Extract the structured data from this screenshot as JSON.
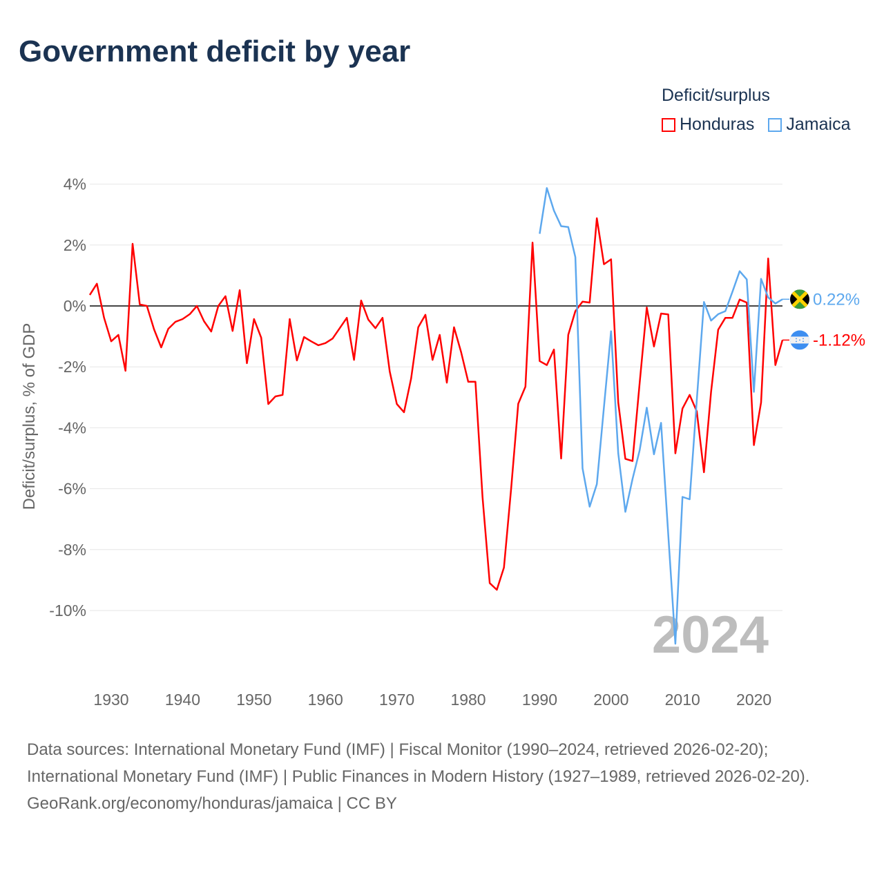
{
  "title": "Government deficit by year",
  "legend": {
    "title": "Deficit/surplus",
    "items": [
      {
        "label": "Honduras",
        "color": "#ff0000"
      },
      {
        "label": "Jamaica",
        "color": "#5da8ee"
      }
    ]
  },
  "chart_data": {
    "type": "line",
    "title": "Government deficit by year",
    "xlabel": "",
    "ylabel": "Deficit/surplus, % of GDP",
    "xlim": [
      1927,
      2024
    ],
    "ylim": [
      -11,
      4
    ],
    "yticks": [
      4,
      2,
      0,
      -2,
      -4,
      -6,
      -8,
      -10
    ],
    "ytick_labels": [
      "4%",
      "2%",
      "0%",
      "-2%",
      "-4%",
      "-6%",
      "-8%",
      "-10%"
    ],
    "xticks": [
      1930,
      1940,
      1950,
      1960,
      1970,
      1980,
      1990,
      2000,
      2010,
      2020
    ],
    "xtick_labels": [
      "1930",
      "1940",
      "1950",
      "1960",
      "1970",
      "1980",
      "1990",
      "2000",
      "2010",
      "2020"
    ],
    "grid": true,
    "year_label": "2024",
    "series": [
      {
        "name": "Honduras",
        "color": "#ff0000",
        "end_label": "-1.12%",
        "flag": "honduras-flag",
        "start_year": 1927,
        "values": [
          0.36,
          0.73,
          -0.39,
          -1.16,
          -0.95,
          -2.13,
          2.04,
          0.05,
          0.0,
          -0.77,
          -1.36,
          -0.75,
          -0.52,
          -0.43,
          -0.27,
          0.0,
          -0.5,
          -0.84,
          0.0,
          0.32,
          -0.82,
          0.52,
          -1.88,
          -0.43,
          -1.04,
          -3.22,
          -2.97,
          -2.92,
          -0.43,
          -1.79,
          -1.02,
          -1.16,
          -1.29,
          -1.22,
          -1.07,
          -0.73,
          -0.39,
          -1.77,
          0.18,
          -0.45,
          -0.73,
          -0.39,
          -2.15,
          -3.22,
          -3.49,
          -2.38,
          -0.7,
          -0.29,
          -1.77,
          -0.95,
          -2.52,
          -0.7,
          -1.52,
          -2.49,
          -2.49,
          -6.28,
          -9.1,
          -9.32,
          -8.59,
          -6.0,
          -3.21,
          -2.65,
          2.08,
          -1.81,
          -1.94,
          -1.43,
          -5.01,
          -0.95,
          -0.17,
          0.14,
          0.11,
          2.88,
          1.37,
          1.53,
          -3.17,
          -5.02,
          -5.09,
          -2.53,
          -0.05,
          -1.33,
          -0.25,
          -0.28,
          -4.84,
          -3.37,
          -2.92,
          -3.46,
          -5.46,
          -2.82,
          -0.78,
          -0.39,
          -0.39,
          0.21,
          0.11,
          -4.57,
          -3.17,
          1.56,
          -1.94,
          -1.12
        ]
      },
      {
        "name": "Jamaica",
        "color": "#5da8ee",
        "end_label": "0.22%",
        "flag": "jamaica-flag",
        "start_year": 1990,
        "values": [
          2.37,
          3.87,
          3.13,
          2.62,
          2.59,
          1.6,
          -5.33,
          -6.59,
          -5.85,
          -3.32,
          -0.83,
          -4.84,
          -6.76,
          -5.68,
          -4.74,
          -3.34,
          -4.87,
          -3.84,
          -7.5,
          -11.09,
          -6.27,
          -6.35,
          -3.1,
          0.13,
          -0.48,
          -0.27,
          -0.17,
          0.47,
          1.14,
          0.87,
          -2.82,
          0.89,
          0.28,
          0.08,
          0.22
        ]
      }
    ]
  },
  "footer": {
    "sources": "Data sources: International Monetary Fund (IMF) | Fiscal Monitor (1990–2024, retrieved 2026-02-20); International Monetary Fund (IMF) | Public Finances in Modern History (1927–1989, retrieved 2026-02-20).",
    "credit": "GeoRank.org/economy/honduras/jamaica | CC BY"
  }
}
